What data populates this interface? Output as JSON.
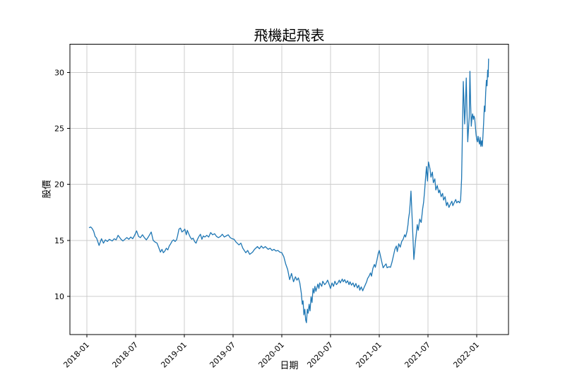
{
  "figure": {
    "background": "#ffffff",
    "line_color": "#1f77b4",
    "grid_color": "#cccccc",
    "spine_color": "#000000",
    "tick_color": "#000000"
  },
  "chart_data": {
    "type": "line",
    "title": "飛機起飛表",
    "xlabel": "日期",
    "ylabel": "股價",
    "grid": true,
    "legend": false,
    "xlim": [
      2017.826,
      2022.326
    ],
    "ylim": [
      6.59,
      32.52
    ],
    "x_tick_rotation": 45,
    "x_ticks": [
      {
        "value": 2018.0,
        "label": "2018-01"
      },
      {
        "value": 2018.5,
        "label": "2018-07"
      },
      {
        "value": 2019.0,
        "label": "2019-01"
      },
      {
        "value": 2019.5,
        "label": "2019-07"
      },
      {
        "value": 2020.0,
        "label": "2020-01"
      },
      {
        "value": 2020.5,
        "label": "2020-07"
      },
      {
        "value": 2021.0,
        "label": "2021-01"
      },
      {
        "value": 2021.5,
        "label": "2021-07"
      },
      {
        "value": 2022.0,
        "label": "2022-01"
      }
    ],
    "y_ticks": [
      10,
      15,
      20,
      25,
      30
    ],
    "series": [
      {
        "name": "股價",
        "color": "#1f77b4",
        "points": [
          [
            2018.025,
            16.15
          ],
          [
            2018.04,
            16.2
          ],
          [
            2018.055,
            16.05
          ],
          [
            2018.07,
            15.8
          ],
          [
            2018.085,
            15.35
          ],
          [
            2018.1,
            15.2
          ],
          [
            2018.125,
            14.55
          ],
          [
            2018.15,
            15.15
          ],
          [
            2018.17,
            14.75
          ],
          [
            2018.19,
            15.05
          ],
          [
            2018.21,
            14.9
          ],
          [
            2018.23,
            15.1
          ],
          [
            2018.26,
            14.95
          ],
          [
            2018.28,
            15.15
          ],
          [
            2018.3,
            15.05
          ],
          [
            2018.32,
            15.45
          ],
          [
            2018.35,
            15.1
          ],
          [
            2018.37,
            14.95
          ],
          [
            2018.39,
            15.1
          ],
          [
            2018.41,
            15.25
          ],
          [
            2018.43,
            15.1
          ],
          [
            2018.45,
            15.3
          ],
          [
            2018.47,
            15.15
          ],
          [
            2018.49,
            15.45
          ],
          [
            2018.51,
            15.85
          ],
          [
            2018.53,
            15.35
          ],
          [
            2018.55,
            15.25
          ],
          [
            2018.57,
            15.5
          ],
          [
            2018.59,
            15.25
          ],
          [
            2018.61,
            15.05
          ],
          [
            2018.63,
            15.3
          ],
          [
            2018.65,
            15.6
          ],
          [
            2018.66,
            15.75
          ],
          [
            2018.68,
            15.0
          ],
          [
            2018.7,
            14.85
          ],
          [
            2018.72,
            14.75
          ],
          [
            2018.74,
            14.3
          ],
          [
            2018.755,
            13.95
          ],
          [
            2018.77,
            14.2
          ],
          [
            2018.785,
            13.9
          ],
          [
            2018.8,
            14.05
          ],
          [
            2018.815,
            14.3
          ],
          [
            2018.83,
            14.15
          ],
          [
            2018.845,
            14.5
          ],
          [
            2018.86,
            14.7
          ],
          [
            2018.875,
            14.95
          ],
          [
            2018.89,
            15.05
          ],
          [
            2018.905,
            14.9
          ],
          [
            2018.92,
            15.05
          ],
          [
            2018.93,
            15.4
          ],
          [
            2018.945,
            16.0
          ],
          [
            2018.96,
            16.1
          ],
          [
            2018.975,
            15.75
          ],
          [
            2018.99,
            15.85
          ],
          [
            2019.005,
            16.0
          ],
          [
            2019.02,
            15.5
          ],
          [
            2019.03,
            15.9
          ],
          [
            2019.045,
            15.6
          ],
          [
            2019.06,
            15.3
          ],
          [
            2019.075,
            15.1
          ],
          [
            2019.09,
            15.2
          ],
          [
            2019.105,
            14.9
          ],
          [
            2019.12,
            14.75
          ],
          [
            2019.135,
            15.1
          ],
          [
            2019.15,
            15.35
          ],
          [
            2019.165,
            15.55
          ],
          [
            2019.18,
            15.1
          ],
          [
            2019.195,
            15.4
          ],
          [
            2019.21,
            15.3
          ],
          [
            2019.23,
            15.45
          ],
          [
            2019.25,
            15.3
          ],
          [
            2019.27,
            15.7
          ],
          [
            2019.29,
            15.5
          ],
          [
            2019.31,
            15.6
          ],
          [
            2019.33,
            15.35
          ],
          [
            2019.35,
            15.25
          ],
          [
            2019.37,
            15.35
          ],
          [
            2019.39,
            15.55
          ],
          [
            2019.41,
            15.3
          ],
          [
            2019.43,
            15.4
          ],
          [
            2019.45,
            15.5
          ],
          [
            2019.47,
            15.25
          ],
          [
            2019.49,
            15.15
          ],
          [
            2019.51,
            15.1
          ],
          [
            2019.53,
            14.85
          ],
          [
            2019.56,
            14.6
          ],
          [
            2019.58,
            14.75
          ],
          [
            2019.6,
            14.3
          ],
          [
            2019.63,
            13.9
          ],
          [
            2019.65,
            14.1
          ],
          [
            2019.67,
            13.75
          ],
          [
            2019.7,
            13.95
          ],
          [
            2019.72,
            14.2
          ],
          [
            2019.75,
            14.45
          ],
          [
            2019.77,
            14.25
          ],
          [
            2019.79,
            14.5
          ],
          [
            2019.81,
            14.3
          ],
          [
            2019.83,
            14.45
          ],
          [
            2019.86,
            14.2
          ],
          [
            2019.88,
            14.3
          ],
          [
            2019.9,
            14.1
          ],
          [
            2019.92,
            14.2
          ],
          [
            2019.94,
            14.05
          ],
          [
            2019.96,
            14.1
          ],
          [
            2019.98,
            13.95
          ],
          [
            2020.0,
            13.9
          ],
          [
            2020.02,
            13.55
          ],
          [
            2020.04,
            12.9
          ],
          [
            2020.06,
            12.4
          ],
          [
            2020.08,
            11.5
          ],
          [
            2020.1,
            12.05
          ],
          [
            2020.12,
            11.3
          ],
          [
            2020.14,
            11.75
          ],
          [
            2020.155,
            11.45
          ],
          [
            2020.17,
            11.65
          ],
          [
            2020.185,
            11.2
          ],
          [
            2020.2,
            10.3
          ],
          [
            2020.21,
            9.3
          ],
          [
            2020.218,
            9.6
          ],
          [
            2020.227,
            8.35
          ],
          [
            2020.236,
            8.85
          ],
          [
            2020.245,
            7.9
          ],
          [
            2020.253,
            7.65
          ],
          [
            2020.262,
            8.85
          ],
          [
            2020.27,
            8.5
          ],
          [
            2020.28,
            9.3
          ],
          [
            2020.29,
            8.7
          ],
          [
            2020.3,
            9.95
          ],
          [
            2020.31,
            9.45
          ],
          [
            2020.32,
            10.7
          ],
          [
            2020.33,
            10.3
          ],
          [
            2020.34,
            10.9
          ],
          [
            2020.35,
            10.45
          ],
          [
            2020.37,
            11.1
          ],
          [
            2020.38,
            10.7
          ],
          [
            2020.39,
            11.2
          ],
          [
            2020.41,
            10.9
          ],
          [
            2020.42,
            11.35
          ],
          [
            2020.44,
            11.05
          ],
          [
            2020.455,
            11.2
          ],
          [
            2020.47,
            11.45
          ],
          [
            2020.485,
            11.1
          ],
          [
            2020.5,
            10.7
          ],
          [
            2020.515,
            11.2
          ],
          [
            2020.53,
            10.9
          ],
          [
            2020.545,
            11.35
          ],
          [
            2020.56,
            11.05
          ],
          [
            2020.575,
            11.2
          ],
          [
            2020.59,
            11.45
          ],
          [
            2020.6,
            11.2
          ],
          [
            2020.62,
            11.55
          ],
          [
            2020.63,
            11.3
          ],
          [
            2020.645,
            11.5
          ],
          [
            2020.66,
            11.2
          ],
          [
            2020.675,
            11.4
          ],
          [
            2020.69,
            11.05
          ],
          [
            2020.7,
            11.3
          ],
          [
            2020.715,
            11.0
          ],
          [
            2020.73,
            11.2
          ],
          [
            2020.745,
            10.85
          ],
          [
            2020.76,
            11.15
          ],
          [
            2020.775,
            10.75
          ],
          [
            2020.79,
            11.0
          ],
          [
            2020.8,
            10.55
          ],
          [
            2020.815,
            10.85
          ],
          [
            2020.83,
            10.5
          ],
          [
            2020.84,
            10.7
          ],
          [
            2020.855,
            11.0
          ],
          [
            2020.87,
            11.3
          ],
          [
            2020.88,
            11.6
          ],
          [
            2020.895,
            11.8
          ],
          [
            2020.91,
            12.1
          ],
          [
            2020.92,
            11.8
          ],
          [
            2020.935,
            12.5
          ],
          [
            2020.95,
            12.85
          ],
          [
            2020.96,
            12.6
          ],
          [
            2020.975,
            13.2
          ],
          [
            2020.99,
            13.85
          ],
          [
            2021.0,
            14.1
          ],
          [
            2021.015,
            13.5
          ],
          [
            2021.03,
            12.9
          ],
          [
            2021.04,
            12.55
          ],
          [
            2021.055,
            12.75
          ],
          [
            2021.07,
            12.9
          ],
          [
            2021.08,
            12.55
          ],
          [
            2021.1,
            12.65
          ],
          [
            2021.115,
            12.6
          ],
          [
            2021.13,
            13.05
          ],
          [
            2021.145,
            13.6
          ],
          [
            2021.16,
            14.2
          ],
          [
            2021.175,
            14.5
          ],
          [
            2021.185,
            14.0
          ],
          [
            2021.2,
            14.7
          ],
          [
            2021.215,
            14.4
          ],
          [
            2021.23,
            14.9
          ],
          [
            2021.245,
            15.1
          ],
          [
            2021.26,
            15.5
          ],
          [
            2021.27,
            15.3
          ],
          [
            2021.285,
            15.8
          ],
          [
            2021.295,
            16.4
          ],
          [
            2021.3,
            16.9
          ],
          [
            2021.31,
            17.5
          ],
          [
            2021.318,
            18.4
          ],
          [
            2021.325,
            19.4
          ],
          [
            2021.34,
            16.5
          ],
          [
            2021.355,
            13.3
          ],
          [
            2021.37,
            14.8
          ],
          [
            2021.38,
            15.6
          ],
          [
            2021.39,
            16.4
          ],
          [
            2021.4,
            15.9
          ],
          [
            2021.415,
            16.9
          ],
          [
            2021.43,
            16.6
          ],
          [
            2021.445,
            17.8
          ],
          [
            2021.455,
            18.4
          ],
          [
            2021.465,
            19.4
          ],
          [
            2021.475,
            20.6
          ],
          [
            2021.485,
            21.6
          ],
          [
            2021.495,
            20.3
          ],
          [
            2021.505,
            22.0
          ],
          [
            2021.52,
            21.4
          ],
          [
            2021.53,
            20.65
          ],
          [
            2021.545,
            21.1
          ],
          [
            2021.555,
            20.15
          ],
          [
            2021.57,
            20.5
          ],
          [
            2021.58,
            19.5
          ],
          [
            2021.595,
            19.9
          ],
          [
            2021.61,
            19.25
          ],
          [
            2021.62,
            19.5
          ],
          [
            2021.635,
            18.9
          ],
          [
            2021.65,
            19.2
          ],
          [
            2021.66,
            18.6
          ],
          [
            2021.675,
            18.9
          ],
          [
            2021.69,
            18.1
          ],
          [
            2021.7,
            18.4
          ],
          [
            2021.715,
            17.95
          ],
          [
            2021.73,
            18.25
          ],
          [
            2021.745,
            18.5
          ],
          [
            2021.755,
            18.1
          ],
          [
            2021.77,
            18.4
          ],
          [
            2021.785,
            18.65
          ],
          [
            2021.795,
            18.35
          ],
          [
            2021.81,
            18.5
          ],
          [
            2021.825,
            18.35
          ],
          [
            2021.835,
            18.6
          ],
          [
            2021.845,
            20.5
          ],
          [
            2021.85,
            23.0
          ],
          [
            2021.856,
            26.0
          ],
          [
            2021.862,
            29.2
          ],
          [
            2021.87,
            27.0
          ],
          [
            2021.876,
            25.4
          ],
          [
            2021.885,
            27.2
          ],
          [
            2021.893,
            29.5
          ],
          [
            2021.9,
            26.5
          ],
          [
            2021.908,
            23.8
          ],
          [
            2021.916,
            25.0
          ],
          [
            2021.923,
            26.0
          ],
          [
            2021.93,
            30.1
          ],
          [
            2021.937,
            27.4
          ],
          [
            2021.944,
            25.2
          ],
          [
            2021.951,
            26.0
          ],
          [
            2021.958,
            26.3
          ],
          [
            2021.965,
            25.8
          ],
          [
            2021.972,
            26.1
          ],
          [
            2021.979,
            25.9
          ],
          [
            2021.986,
            25.2
          ],
          [
            2021.993,
            24.5
          ],
          [
            2022.0,
            24.0
          ],
          [
            2022.007,
            23.8
          ],
          [
            2022.014,
            24.3
          ],
          [
            2022.021,
            23.9
          ],
          [
            2022.028,
            23.6
          ],
          [
            2022.035,
            24.2
          ],
          [
            2022.042,
            23.4
          ],
          [
            2022.05,
            23.9
          ],
          [
            2022.057,
            23.4
          ],
          [
            2022.064,
            24.3
          ],
          [
            2022.071,
            25.5
          ],
          [
            2022.078,
            27.0
          ],
          [
            2022.085,
            26.5
          ],
          [
            2022.092,
            28.2
          ],
          [
            2022.099,
            29.3
          ],
          [
            2022.106,
            28.8
          ],
          [
            2022.112,
            30.2
          ],
          [
            2022.117,
            29.6
          ],
          [
            2022.122,
            31.2
          ]
        ]
      }
    ]
  }
}
